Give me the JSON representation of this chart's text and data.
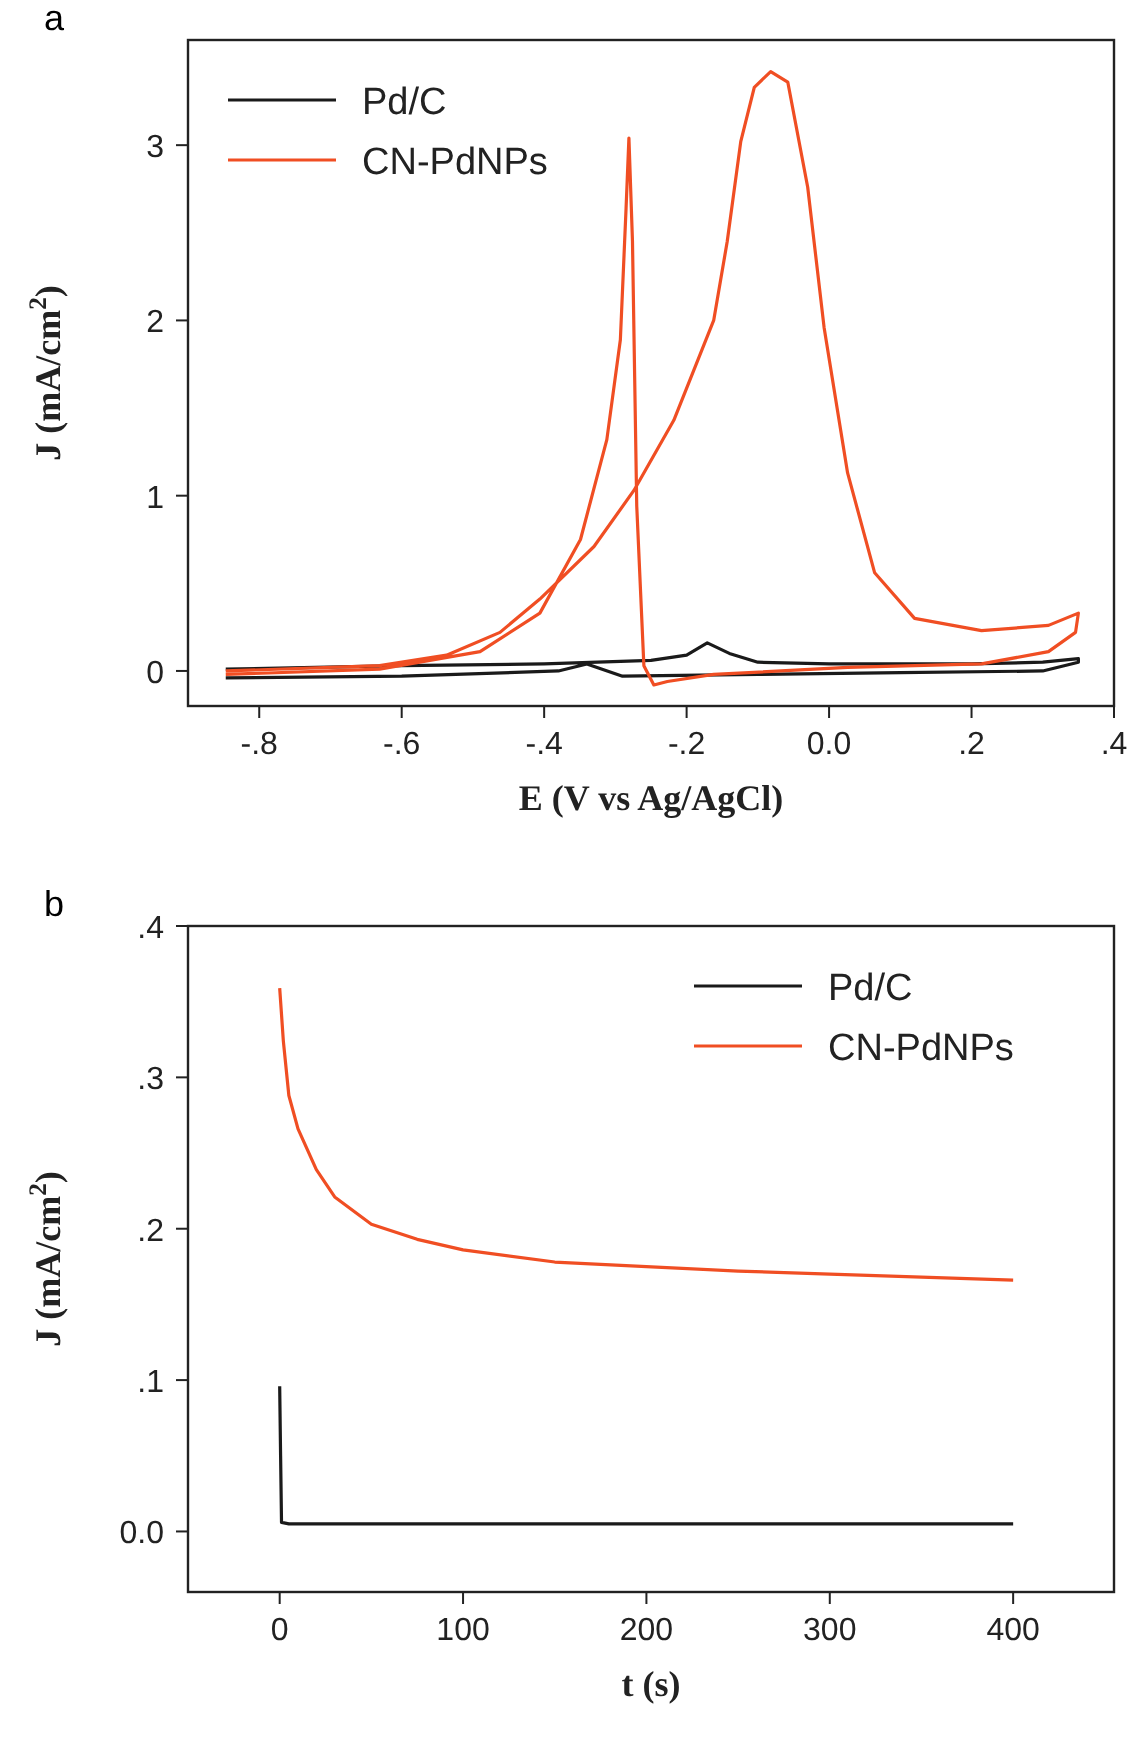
{
  "chart_data": [
    {
      "type": "line",
      "title": "a",
      "xlabel": "E (V vs Ag/AgCl)",
      "ylabel": "J (mA/cm$^{2}$)",
      "legend": "top left",
      "grid": false,
      "marker": "none",
      "line_style": "solid",
      "xlim": [
        -0.9,
        0.4
      ],
      "xticks": [
        {
          "value": -0.8,
          "label": "-.8"
        },
        {
          "value": -0.6,
          "label": "-.6"
        },
        {
          "value": -0.4,
          "label": "-.4"
        },
        {
          "value": -0.2,
          "label": "-.2"
        },
        {
          "value": 0,
          "label": "0.0"
        },
        {
          "value": 0.2,
          "label": ".2"
        },
        {
          "value": 0.4,
          "label": ".4"
        }
      ],
      "ylim": [
        -0.2,
        3.6
      ],
      "yticks": [
        0,
        1,
        2,
        3
      ],
      "series": [
        {
          "name": "Pd/C",
          "color": "#1a1a1a",
          "x": [
            -0.847,
            -0.6,
            -0.4,
            -0.25,
            -0.2,
            -0.171,
            -0.14,
            -0.1,
            0.0,
            0.2,
            0.3,
            0.35,
            0.35,
            0.3,
            0.1,
            -0.1,
            -0.29,
            -0.34,
            -0.38,
            -0.6,
            -0.847
          ],
          "values": [
            0.01,
            0.03,
            0.04,
            0.06,
            0.09,
            0.16,
            0.1,
            0.05,
            0.04,
            0.04,
            0.05,
            0.07,
            0.05,
            0.0,
            -0.01,
            -0.02,
            -0.03,
            0.04,
            0.0,
            -0.03,
            -0.04
          ]
        },
        {
          "name": "CN-PdNPs",
          "color": "#f04e23",
          "x": [
            -0.847,
            -0.631,
            -0.537,
            -0.462,
            -0.406,
            -0.33,
            -0.274,
            -0.218,
            -0.162,
            -0.143,
            -0.124,
            -0.105,
            -0.082,
            -0.058,
            -0.03,
            -0.007,
            0.026,
            0.064,
            0.12,
            0.214,
            0.308,
            0.35,
            0.346,
            0.308,
            0.214,
            0.026,
            -0.162,
            -0.227,
            -0.246,
            -0.26,
            -0.27,
            -0.276,
            -0.281,
            -0.285,
            -0.293,
            -0.312,
            -0.349,
            -0.406,
            -0.49,
            -0.631,
            -0.847
          ],
          "values": [
            0.0,
            0.03,
            0.09,
            0.22,
            0.41,
            0.71,
            1.03,
            1.43,
            2.0,
            2.45,
            3.02,
            3.33,
            3.42,
            3.36,
            2.76,
            1.96,
            1.13,
            0.56,
            0.3,
            0.23,
            0.26,
            0.33,
            0.22,
            0.11,
            0.04,
            0.02,
            -0.02,
            -0.06,
            -0.08,
            0.03,
            0.94,
            2.45,
            3.04,
            2.64,
            1.89,
            1.32,
            0.75,
            0.33,
            0.11,
            0.01,
            -0.02
          ]
        }
      ]
    },
    {
      "type": "line",
      "title": "b",
      "xlabel": "t (s)",
      "ylabel": "J (mA/cm$^{2}$)",
      "legend": "top right",
      "grid": false,
      "marker": "none",
      "line_style": "solid",
      "xlim": [
        -50,
        455
      ],
      "xticks": [
        0,
        100,
        200,
        300,
        400
      ],
      "ylim": [
        -0.04,
        0.4
      ],
      "yticks": [
        {
          "value": 0,
          "label": "0.0"
        },
        {
          "value": 0.1,
          "label": ".1"
        },
        {
          "value": 0.2,
          "label": ".2"
        },
        {
          "value": 0.3,
          "label": ".3"
        },
        {
          "value": 0.4,
          "label": ".4"
        }
      ],
      "series": [
        {
          "name": "Pd/C",
          "color": "#1a1a1a",
          "x": [
            0,
            0.5,
            1,
            5,
            100,
            200,
            300,
            400
          ],
          "values": [
            0.096,
            0.05,
            0.006,
            0.005,
            0.005,
            0.005,
            0.005,
            0.005
          ]
        },
        {
          "name": "CN-PdNPs",
          "color": "#f04e23",
          "x": [
            0,
            2,
            5,
            10,
            20,
            30,
            50,
            75,
            100,
            150,
            200,
            250,
            300,
            350,
            400
          ],
          "values": [
            0.359,
            0.324,
            0.288,
            0.266,
            0.239,
            0.221,
            0.203,
            0.193,
            0.186,
            0.178,
            0.175,
            0.172,
            0.17,
            0.168,
            0.166
          ]
        }
      ]
    }
  ]
}
